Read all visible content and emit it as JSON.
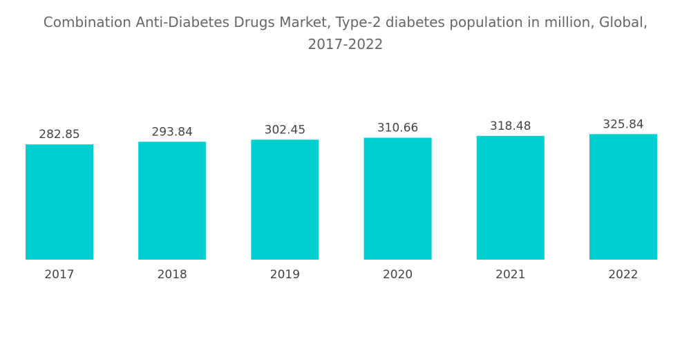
{
  "chart_data": {
    "type": "bar",
    "title_line1": "Combination Anti-Diabetes Drugs Market, Type-2 diabetes population in million, Global,",
    "title_line2": "2017-2022",
    "categories": [
      "2017",
      "2018",
      "2019",
      "2020",
      "2021",
      "2022"
    ],
    "values": [
      282.85,
      293.84,
      302.45,
      310.66,
      318.48,
      325.84
    ],
    "value_labels": [
      "282.85",
      "293.84",
      "302.45",
      "310.66",
      "318.48",
      "325.84"
    ],
    "xlabel": "",
    "ylabel": "",
    "grid": false,
    "legend": "none",
    "bar_color": "#00CED1"
  }
}
